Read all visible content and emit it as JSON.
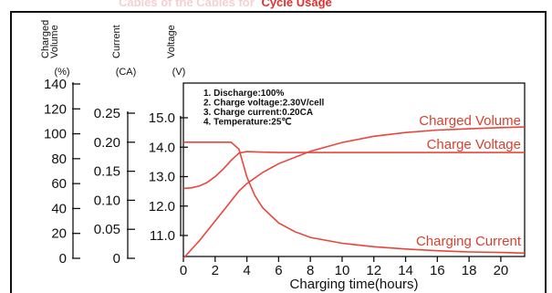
{
  "top_caption": {
    "prefix": "Cables of the Cables for",
    "highlight": "Cycle Usage",
    "prefix_color": "#f5d0d0",
    "highlight_color": "#e03030"
  },
  "colors": {
    "curve": "#e8463c",
    "label": "#d9402f",
    "axis": "#111111"
  },
  "chart_data": {
    "type": "line",
    "xlabel": "Charging time(hours)",
    "x_ticks": [
      "0",
      "2",
      "4",
      "6",
      "8",
      "10",
      "12",
      "14",
      "16",
      "18",
      "20"
    ],
    "xlim": [
      0,
      21.5
    ],
    "axes": [
      {
        "id": "volume",
        "header": [
          "Charged",
          "Volume"
        ],
        "unit": "(%)",
        "ticks": [
          "0",
          "20",
          "40",
          "60",
          "80",
          "100",
          "120",
          "140"
        ],
        "range": [
          0,
          140
        ]
      },
      {
        "id": "current",
        "header": [
          "Current"
        ],
        "unit": "(CA)",
        "ticks": [
          "0",
          "0.05",
          "0.10",
          "0.15",
          "0.20",
          "0.25"
        ],
        "range": [
          0,
          0.25
        ]
      },
      {
        "id": "voltage",
        "header": [
          "Voltage"
        ],
        "unit": "(V)",
        "ticks": [
          "11.0",
          "12.0",
          "13.0",
          "14.0",
          "15.0"
        ],
        "range": [
          11.0,
          15.0
        ]
      }
    ],
    "conditions": [
      "1. Discharge:100%",
      "2. Charge voltage:2.30V/cell",
      "3. Charge current:0.20CA",
      "4. Temperature:25℃"
    ],
    "series": [
      {
        "name": "Charged Volume",
        "axis": "volume",
        "x": [
          0,
          0.5,
          1,
          1.5,
          2,
          2.5,
          3,
          3.5,
          4,
          5,
          6,
          8,
          10,
          12,
          14,
          16,
          18,
          20,
          21.5
        ],
        "y": [
          0,
          7,
          14,
          22,
          30,
          38,
          46,
          54,
          60,
          69,
          76,
          86,
          93,
          98,
          101,
          103,
          104,
          105,
          105.5
        ]
      },
      {
        "name": "Charge Voltage",
        "axis": "voltage",
        "x": [
          0,
          0.5,
          1,
          1.5,
          2,
          2.5,
          3,
          3.5,
          4,
          5,
          6,
          8,
          10,
          12,
          14,
          16,
          18,
          20,
          21.5
        ],
        "y": [
          12.6,
          12.62,
          12.68,
          12.8,
          13.0,
          13.25,
          13.55,
          13.8,
          13.85,
          13.83,
          13.82,
          13.82,
          13.82,
          13.82,
          13.82,
          13.82,
          13.82,
          13.82,
          13.82
        ]
      },
      {
        "name": "Charging Current",
        "axis": "current",
        "x": [
          0,
          1,
          2,
          3,
          3.5,
          4,
          4.5,
          5,
          6,
          7,
          8,
          10,
          12,
          14,
          16,
          18,
          20,
          21.5
        ],
        "y": [
          0.2,
          0.2,
          0.2,
          0.2,
          0.188,
          0.14,
          0.108,
          0.087,
          0.061,
          0.046,
          0.036,
          0.026,
          0.02,
          0.016,
          0.013,
          0.011,
          0.01,
          0.009
        ]
      }
    ]
  }
}
